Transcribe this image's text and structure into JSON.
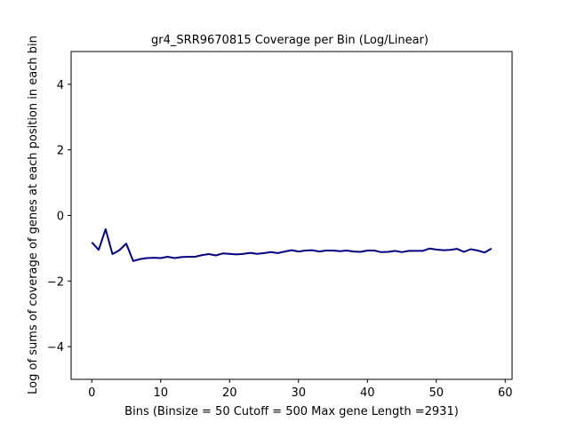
{
  "chart_data": {
    "type": "line",
    "title": "gr4_SRR9670815 Coverage per Bin (Log/Linear)",
    "xlabel": "Bins  (Binsize = 50 Cutoff = 500 Max gene Length =2931)",
    "ylabel": "Log of sums of coverage of genes at each position in each bin",
    "xlim": [
      -3,
      61
    ],
    "ylim": [
      -5,
      5
    ],
    "xticks": [
      0,
      10,
      20,
      30,
      40,
      50,
      60
    ],
    "yticks": [
      -4,
      -2,
      0,
      2,
      4
    ],
    "grid": false,
    "line_color": "#000080",
    "series": [
      {
        "x": [
          0,
          1,
          2,
          3,
          4,
          5,
          6,
          7,
          8,
          9,
          10,
          11,
          12,
          13,
          14,
          15,
          16,
          17,
          18,
          19,
          20,
          21,
          22,
          23,
          24,
          25,
          26,
          27,
          28,
          29,
          30,
          31,
          32,
          33,
          34,
          35,
          36,
          37,
          38,
          39,
          40,
          41,
          42,
          43,
          44,
          45,
          46,
          47,
          48,
          49,
          50,
          51,
          52,
          53,
          54,
          55,
          56,
          57,
          58
        ],
        "values": [
          -0.82,
          -1.05,
          -0.42,
          -1.18,
          -1.06,
          -0.86,
          -1.39,
          -1.33,
          -1.3,
          -1.29,
          -1.3,
          -1.26,
          -1.3,
          -1.27,
          -1.26,
          -1.26,
          -1.21,
          -1.18,
          -1.22,
          -1.16,
          -1.17,
          -1.19,
          -1.17,
          -1.14,
          -1.17,
          -1.15,
          -1.12,
          -1.15,
          -1.1,
          -1.06,
          -1.1,
          -1.07,
          -1.06,
          -1.1,
          -1.07,
          -1.07,
          -1.09,
          -1.07,
          -1.1,
          -1.11,
          -1.07,
          -1.07,
          -1.12,
          -1.11,
          -1.08,
          -1.12,
          -1.08,
          -1.08,
          -1.08,
          -1.01,
          -1.04,
          -1.06,
          -1.05,
          -1.02,
          -1.11,
          -1.03,
          -1.07,
          -1.13,
          -1.01
        ]
      }
    ]
  }
}
